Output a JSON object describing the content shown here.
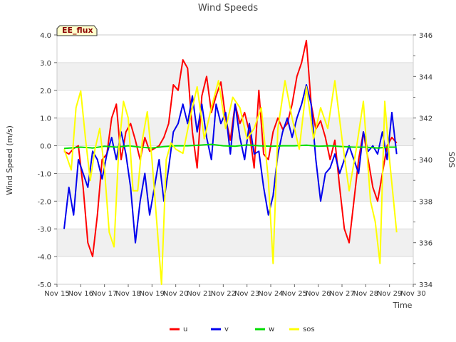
{
  "chart_data": {
    "type": "line",
    "title": "Wind Speeds",
    "site_label": "EE_flux",
    "xlabel": "Time",
    "ylabel": "Wind Speed (m/s)",
    "y2label": "SOS",
    "xlim": [
      15,
      30
    ],
    "ylim": [
      -5.0,
      4.0
    ],
    "y2lim": [
      334,
      346
    ],
    "x_ticks": [
      15,
      16,
      17,
      18,
      19,
      20,
      21,
      22,
      23,
      24,
      25,
      26,
      27,
      28,
      29,
      30
    ],
    "x_tick_labels": [
      "Nov 15",
      "Nov 16",
      "Nov 17",
      "Nov 18",
      "Nov 19",
      "Nov 20",
      "Nov 21",
      "Nov 22",
      "Nov 23",
      "Nov 24",
      "Nov 25",
      "Nov 26",
      "Nov 27",
      "Nov 28",
      "Nov 29",
      "Nov 30"
    ],
    "y_ticks": [
      -5,
      -4,
      -3,
      -2,
      -1,
      0,
      1,
      2,
      3,
      4
    ],
    "y_tick_labels": [
      "-5.0",
      "-4.0",
      "-3.0",
      "-2.0",
      "-1.0",
      "0.0",
      "1.0",
      "2.0",
      "3.0",
      "4.0"
    ],
    "y2_ticks": [
      334,
      336,
      338,
      340,
      342,
      344,
      346
    ],
    "y2_tick_labels": [
      "334",
      "336",
      "338",
      "340",
      "342",
      "344",
      "346"
    ],
    "legend": [
      "u",
      "v",
      "w",
      "sos"
    ],
    "series": [
      {
        "name": "u",
        "color": "#ff0000",
        "axis": "left",
        "x": [
          15.3,
          15.5,
          15.7,
          15.9,
          16.1,
          16.3,
          16.5,
          16.7,
          16.9,
          17.1,
          17.3,
          17.5,
          17.7,
          17.9,
          18.1,
          18.3,
          18.5,
          18.7,
          18.9,
          19.1,
          19.3,
          19.5,
          19.7,
          19.9,
          20.1,
          20.3,
          20.5,
          20.7,
          20.9,
          21.1,
          21.3,
          21.5,
          21.7,
          21.9,
          22.1,
          22.3,
          22.5,
          22.7,
          22.9,
          23.1,
          23.3,
          23.5,
          23.7,
          23.9,
          24.1,
          24.3,
          24.5,
          24.7,
          24.9,
          25.1,
          25.3,
          25.5,
          25.7,
          25.9,
          26.1,
          26.3,
          26.5,
          26.7,
          26.9,
          27.1,
          27.3,
          27.5,
          27.7,
          27.9,
          28.1,
          28.3,
          28.5,
          28.7,
          28.9,
          29.1,
          29.3
        ],
        "y": [
          -0.2,
          -0.3,
          -0.1,
          0.0,
          -1.5,
          -3.5,
          -4.0,
          -2.5,
          -0.5,
          -0.3,
          1.0,
          1.5,
          -0.5,
          0.5,
          0.8,
          0.2,
          -0.5,
          0.3,
          -0.2,
          -0.1,
          0.0,
          0.3,
          0.8,
          2.2,
          2.0,
          3.1,
          2.8,
          0.5,
          -0.8,
          1.8,
          2.5,
          1.2,
          1.8,
          2.3,
          1.0,
          0.2,
          1.5,
          0.8,
          1.2,
          0.5,
          -0.8,
          2.0,
          -0.3,
          -0.5,
          0.5,
          1.0,
          0.6,
          0.8,
          1.5,
          2.5,
          3.0,
          3.8,
          1.5,
          0.6,
          0.9,
          0.3,
          -0.5,
          0.2,
          -1.5,
          -3.0,
          -3.5,
          -2.0,
          -0.5,
          0.5,
          -0.5,
          -1.5,
          -2.0,
          -1.0,
          0.0,
          0.3,
          0.1
        ]
      },
      {
        "name": "v",
        "color": "#0000ee",
        "axis": "left",
        "x": [
          15.3,
          15.5,
          15.7,
          15.9,
          16.1,
          16.3,
          16.5,
          16.7,
          16.9,
          17.1,
          17.3,
          17.5,
          17.7,
          17.9,
          18.1,
          18.3,
          18.5,
          18.7,
          18.9,
          19.1,
          19.3,
          19.5,
          19.7,
          19.9,
          20.1,
          20.3,
          20.5,
          20.7,
          20.9,
          21.1,
          21.3,
          21.5,
          21.7,
          21.9,
          22.1,
          22.3,
          22.5,
          22.7,
          22.9,
          23.1,
          23.3,
          23.5,
          23.7,
          23.9,
          24.1,
          24.3,
          24.5,
          24.7,
          24.9,
          25.1,
          25.3,
          25.5,
          25.7,
          25.9,
          26.1,
          26.3,
          26.5,
          26.7,
          26.9,
          27.1,
          27.3,
          27.5,
          27.7,
          27.9,
          28.1,
          28.3,
          28.5,
          28.7,
          28.9,
          29.1,
          29.3
        ],
        "y": [
          -3.0,
          -1.5,
          -2.5,
          -0.5,
          -1.0,
          -1.5,
          -0.2,
          -0.5,
          -1.2,
          -0.3,
          0.3,
          -0.5,
          0.5,
          -0.3,
          -1.5,
          -3.5,
          -2.0,
          -1.0,
          -2.5,
          -1.5,
          -0.5,
          -2.0,
          -0.8,
          0.5,
          0.8,
          1.5,
          0.8,
          1.8,
          0.5,
          1.5,
          0.3,
          -0.5,
          1.5,
          0.8,
          1.2,
          -0.3,
          1.5,
          0.3,
          -0.5,
          0.8,
          -0.3,
          -0.2,
          -1.5,
          -2.5,
          -1.8,
          -0.3,
          0.5,
          1.0,
          0.3,
          1.0,
          1.5,
          2.2,
          1.5,
          -0.5,
          -2.0,
          -1.0,
          -0.8,
          -0.3,
          -1.0,
          -0.5,
          0.0,
          -0.5,
          -1.0,
          0.5,
          -0.2,
          0.0,
          -0.3,
          0.5,
          -0.5,
          1.2,
          -0.3
        ]
      },
      {
        "name": "w",
        "color": "#00dd00",
        "axis": "left",
        "x": [
          15.3,
          16.0,
          16.5,
          17.0,
          17.5,
          18.0,
          18.5,
          19.0,
          19.5,
          20.0,
          20.5,
          21.0,
          21.5,
          22.0,
          22.5,
          23.0,
          23.5,
          24.0,
          24.5,
          25.0,
          25.5,
          26.0,
          26.5,
          27.0,
          27.5,
          28.0,
          28.5,
          29.0,
          29.3
        ],
        "y": [
          -0.1,
          -0.05,
          -0.08,
          -0.02,
          -0.05,
          0.0,
          -0.05,
          -0.08,
          -0.03,
          0.0,
          0.0,
          0.02,
          0.05,
          0.0,
          -0.02,
          0.03,
          0.0,
          -0.02,
          0.0,
          0.0,
          0.02,
          -0.02,
          0.0,
          -0.03,
          -0.05,
          -0.05,
          -0.08,
          -0.05,
          -0.05
        ]
      },
      {
        "name": "sos",
        "color": "#ffff00",
        "axis": "right",
        "x": [
          15.3,
          15.6,
          15.8,
          16.0,
          16.2,
          16.4,
          16.6,
          16.8,
          17.0,
          17.2,
          17.4,
          17.6,
          17.8,
          18.0,
          18.2,
          18.4,
          18.6,
          18.8,
          19.0,
          19.2,
          19.4,
          19.6,
          19.8,
          20.0,
          20.3,
          20.6,
          20.9,
          21.2,
          21.5,
          21.8,
          22.1,
          22.4,
          22.7,
          23.0,
          23.3,
          23.6,
          23.9,
          24.1,
          24.3,
          24.6,
          24.9,
          25.2,
          25.5,
          25.8,
          26.1,
          26.4,
          26.7,
          27.0,
          27.3,
          27.6,
          27.9,
          28.2,
          28.4,
          28.6,
          28.8,
          29.0,
          29.3
        ],
        "y": [
          340.5,
          339.5,
          342.5,
          343.3,
          341.0,
          339.0,
          340.5,
          341.5,
          339.5,
          336.5,
          335.8,
          340.5,
          342.8,
          342.0,
          338.5,
          338.5,
          341.0,
          342.3,
          340.0,
          337.0,
          334.0,
          340.0,
          340.8,
          340.5,
          340.3,
          342.0,
          343.5,
          341.0,
          342.5,
          343.8,
          341.5,
          343.0,
          342.5,
          341.0,
          341.5,
          342.5,
          339.0,
          335.0,
          341.5,
          343.8,
          342.0,
          340.5,
          343.5,
          341.0,
          342.5,
          341.5,
          343.8,
          341.0,
          338.5,
          340.5,
          342.8,
          338.0,
          337.0,
          335.0,
          342.8,
          340.0,
          336.5
        ]
      }
    ]
  }
}
